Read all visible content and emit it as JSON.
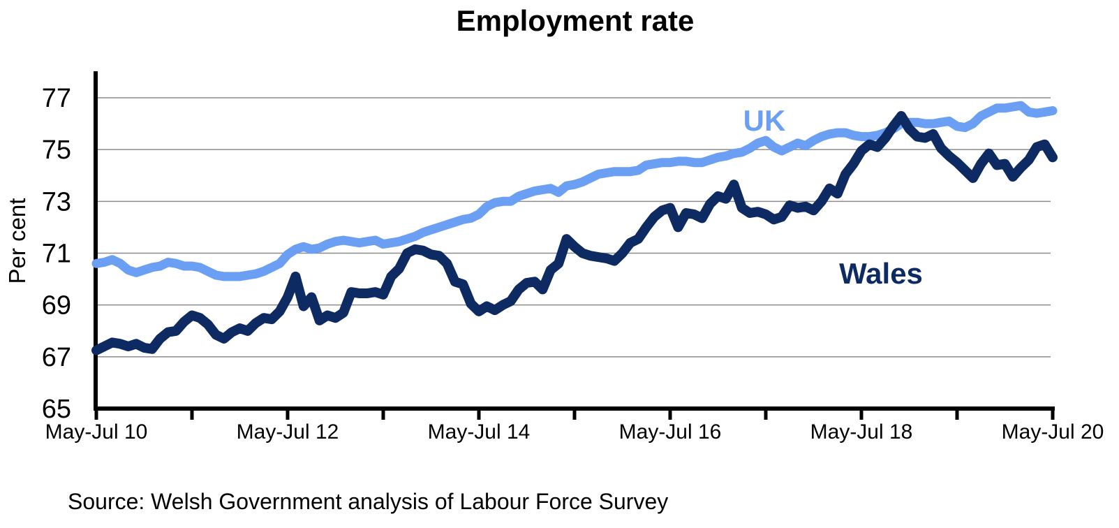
{
  "title": "Employment rate",
  "source": "Source: Welsh Government analysis of Labour Force Survey",
  "y_axis": {
    "label": "Per cent",
    "tick_labels": [
      "77",
      "75",
      "73",
      "71",
      "69",
      "67",
      "65"
    ],
    "tick_values": [
      77,
      75,
      73,
      71,
      69,
      67,
      65
    ]
  },
  "x_axis": {
    "tick_labels": [
      "May-Jul 10",
      "May-Jul 12",
      "May-Jul 14",
      "May-Jul 16",
      "May-Jul 18",
      "May-Jul 20"
    ],
    "minor_ticks_every_years": 1
  },
  "colors": {
    "uk": "#6B9FF3",
    "wales": "#0E2A62",
    "gridline": "#8C8C8C",
    "axis": "#000000",
    "text": "#000000"
  },
  "chart_data": {
    "type": "line",
    "title": "Employment rate",
    "ylabel": "Per cent",
    "ylim": [
      65,
      78
    ],
    "grid": "horizontal gridlines at 67,69,71,73,75,77",
    "legend_position": "labels next to lines (UK above light-blue line, Wales below dark line)",
    "x_unit": "monthly rolling 3-month averages",
    "x_range": [
      "May-Jul 10",
      "May-Jul 20"
    ],
    "x_tick_labels": [
      "May-Jul 10",
      "May-Jul 12",
      "May-Jul 14",
      "May-Jul 16",
      "May-Jul 18",
      "May-Jul 20"
    ],
    "points_per_series": 121,
    "series": [
      {
        "name": "UK",
        "color": "#6B9FF3",
        "values": [
          70.6,
          70.65,
          70.75,
          70.6,
          70.35,
          70.25,
          70.35,
          70.45,
          70.5,
          70.65,
          70.6,
          70.5,
          70.5,
          70.45,
          70.3,
          70.15,
          70.1,
          70.1,
          70.1,
          70.15,
          70.2,
          70.3,
          70.45,
          70.6,
          70.95,
          71.15,
          71.25,
          71.15,
          71.2,
          71.35,
          71.45,
          71.5,
          71.45,
          71.4,
          71.45,
          71.5,
          71.35,
          71.4,
          71.45,
          71.55,
          71.65,
          71.8,
          71.9,
          72.0,
          72.1,
          72.2,
          72.3,
          72.35,
          72.5,
          72.8,
          72.95,
          73.0,
          73.0,
          73.2,
          73.3,
          73.4,
          73.45,
          73.5,
          73.35,
          73.6,
          73.65,
          73.75,
          73.9,
          74.05,
          74.1,
          74.15,
          74.15,
          74.15,
          74.2,
          74.4,
          74.45,
          74.5,
          74.5,
          74.55,
          74.55,
          74.5,
          74.5,
          74.6,
          74.7,
          74.75,
          74.85,
          74.9,
          75.05,
          75.25,
          75.35,
          75.1,
          74.95,
          75.1,
          75.25,
          75.15,
          75.35,
          75.5,
          75.6,
          75.65,
          75.65,
          75.55,
          75.5,
          75.5,
          75.55,
          75.65,
          75.8,
          76.0,
          76.05,
          76.05,
          76.0,
          76.0,
          76.05,
          76.1,
          75.9,
          75.85,
          76.0,
          76.3,
          76.45,
          76.6,
          76.6,
          76.65,
          76.7,
          76.45,
          76.4,
          76.45,
          76.5
        ]
      },
      {
        "name": "Wales",
        "color": "#0E2A62",
        "values": [
          67.25,
          67.4,
          67.55,
          67.5,
          67.4,
          67.5,
          67.35,
          67.3,
          67.7,
          67.95,
          68.0,
          68.35,
          68.6,
          68.5,
          68.25,
          67.85,
          67.7,
          67.95,
          68.1,
          68.0,
          68.3,
          68.5,
          68.45,
          68.75,
          69.3,
          70.1,
          68.95,
          69.3,
          68.4,
          68.6,
          68.5,
          68.7,
          69.5,
          69.45,
          69.45,
          69.5,
          69.4,
          70.1,
          70.4,
          71.0,
          71.15,
          71.1,
          70.95,
          70.9,
          70.6,
          69.9,
          69.8,
          69.05,
          68.75,
          68.95,
          68.8,
          69.0,
          69.15,
          69.6,
          69.85,
          69.9,
          69.6,
          70.35,
          70.6,
          71.55,
          71.25,
          71.0,
          70.9,
          70.85,
          70.8,
          70.7,
          71.0,
          71.4,
          71.55,
          72.0,
          72.4,
          72.65,
          72.75,
          72.0,
          72.55,
          72.5,
          72.35,
          72.9,
          73.2,
          73.1,
          73.65,
          72.75,
          72.55,
          72.6,
          72.5,
          72.3,
          72.4,
          72.85,
          72.75,
          72.8,
          72.65,
          73.0,
          73.5,
          73.3,
          74.05,
          74.45,
          74.95,
          75.2,
          75.1,
          75.45,
          75.9,
          76.3,
          75.8,
          75.5,
          75.45,
          75.6,
          75.05,
          74.75,
          74.5,
          74.2,
          73.9,
          74.45,
          74.85,
          74.4,
          74.45,
          73.95,
          74.3,
          74.6,
          75.1,
          75.2,
          74.7
        ]
      }
    ]
  }
}
